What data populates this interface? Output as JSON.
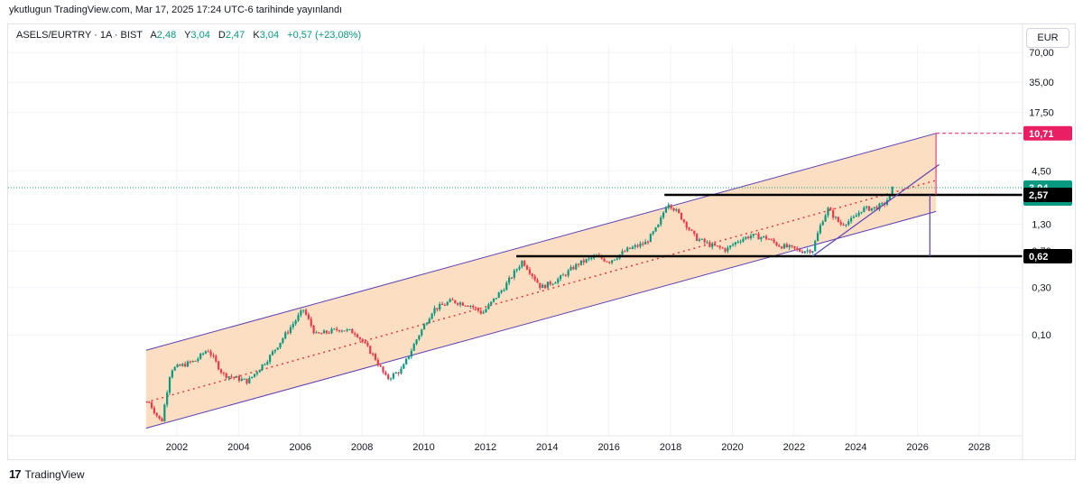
{
  "publish_info": "ykutlugun TradingView.com, Mar 17, 2025 17:24 UTC-6 tarihinde yayınlandı",
  "legend": {
    "symbol": "ASELS/EURTRY · 1A · BIST",
    "open_label": "A",
    "open": "2,48",
    "high_label": "Y",
    "high": "3,04",
    "low_label": "D",
    "low": "2,47",
    "close_label": "K",
    "close": "3,04",
    "change": "+0,57 (+23,08%)"
  },
  "currency_button": "EUR",
  "footer_brand": "TradingView",
  "colors": {
    "up": "#089981",
    "down": "#f23645",
    "channel_fill": "#fbd9b8",
    "channel_line": "#5b3fb5",
    "target": "#e91e63",
    "grid": "#f0f3fa"
  },
  "chart_data": {
    "type": "candlestick",
    "scale": "log",
    "interval": "1A",
    "x_ticks": [
      "2002",
      "2004",
      "2006",
      "2008",
      "2010",
      "2012",
      "2014",
      "2016",
      "2018",
      "2020",
      "2022",
      "2024",
      "2026",
      "2028"
    ],
    "y_ticks": [
      "70,00",
      "35,00",
      "17,50",
      "4,50",
      "1,30",
      "0,70",
      "0,30",
      "0,10"
    ],
    "price_labels": [
      {
        "value": 10.71,
        "text": "10,71"
      },
      {
        "value": 3.04,
        "text": "3,04",
        "countdown": "10d 17h"
      },
      {
        "value": 2.57,
        "text": "2,57"
      },
      {
        "value": 0.62,
        "text": "0,62"
      }
    ],
    "last_price": 3.04,
    "anchors": [
      [
        2001.1,
        0.021
      ],
      [
        2001.5,
        0.013
      ],
      [
        2001.8,
        0.045
      ],
      [
        2002.6,
        0.055
      ],
      [
        2003.0,
        0.072
      ],
      [
        2003.5,
        0.04
      ],
      [
        2004.3,
        0.034
      ],
      [
        2005.0,
        0.06
      ],
      [
        2005.6,
        0.11
      ],
      [
        2006.1,
        0.18
      ],
      [
        2006.5,
        0.1
      ],
      [
        2007.3,
        0.115
      ],
      [
        2007.8,
        0.105
      ],
      [
        2008.4,
        0.06
      ],
      [
        2008.8,
        0.036
      ],
      [
        2009.3,
        0.045
      ],
      [
        2009.8,
        0.095
      ],
      [
        2010.3,
        0.18
      ],
      [
        2010.9,
        0.22
      ],
      [
        2011.5,
        0.2
      ],
      [
        2011.9,
        0.165
      ],
      [
        2012.6,
        0.3
      ],
      [
        2013.2,
        0.56
      ],
      [
        2013.8,
        0.3
      ],
      [
        2014.4,
        0.37
      ],
      [
        2015.0,
        0.52
      ],
      [
        2015.6,
        0.62
      ],
      [
        2016.0,
        0.55
      ],
      [
        2016.6,
        0.72
      ],
      [
        2017.2,
        0.85
      ],
      [
        2017.6,
        1.25
      ],
      [
        2017.9,
        2.2
      ],
      [
        2018.3,
        1.6
      ],
      [
        2018.8,
        0.95
      ],
      [
        2019.3,
        0.8
      ],
      [
        2019.8,
        0.72
      ],
      [
        2020.2,
        0.9
      ],
      [
        2020.6,
        1.0
      ],
      [
        2021.1,
        0.95
      ],
      [
        2021.5,
        0.8
      ],
      [
        2021.9,
        0.75
      ],
      [
        2022.2,
        0.7
      ],
      [
        2022.6,
        0.72
      ],
      [
        2022.9,
        1.4
      ],
      [
        2023.1,
        1.85
      ],
      [
        2023.5,
        1.3
      ],
      [
        2023.9,
        1.45
      ],
      [
        2024.2,
        1.85
      ],
      [
        2024.6,
        1.9
      ],
      [
        2024.9,
        2.05
      ],
      [
        2025.1,
        2.48
      ],
      [
        2025.2,
        3.04
      ]
    ],
    "drawings": {
      "channel_upper": [
        [
          2001.0,
          0.07
        ],
        [
          2026.6,
          10.71
        ]
      ],
      "channel_lower": [
        [
          2001.0,
          0.0115
        ],
        [
          2026.6,
          1.75
        ]
      ],
      "midline": [
        [
          2001.0,
          0.021
        ],
        [
          2026.6,
          3.6
        ]
      ],
      "support_2_57": [
        2017.8,
        2028.0,
        2.57
      ],
      "support_0_62": [
        2013.0,
        2028.0,
        0.62
      ],
      "trend_short": [
        [
          2022.6,
          0.62
        ],
        [
          2026.7,
          5.2
        ]
      ],
      "target_dashed": [
        2026.6,
        2028.4,
        10.71
      ],
      "vertical_measure": [
        2026.4,
        0.62,
        2.57
      ],
      "vertical_target": [
        2026.6,
        2.57,
        10.71
      ]
    }
  }
}
